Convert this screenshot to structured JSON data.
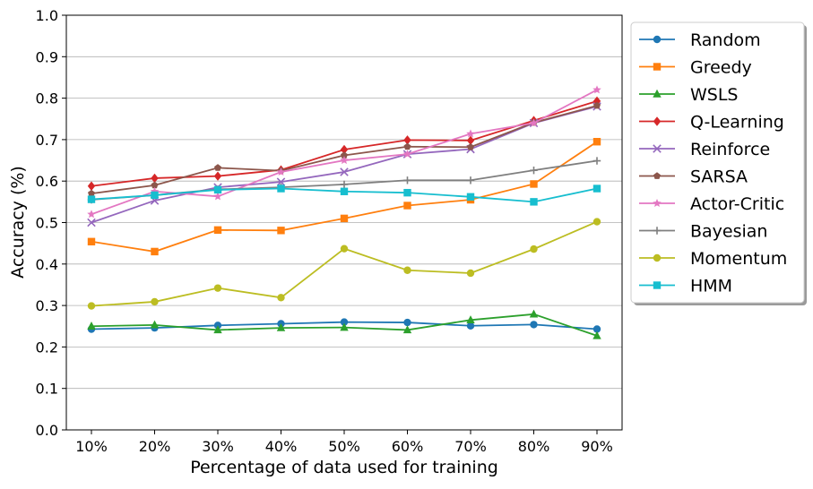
{
  "chart_data": {
    "type": "line",
    "title": "",
    "xlabel": "Percentage of data used for training",
    "ylabel": "Accuracy (%)",
    "categories": [
      "10%",
      "20%",
      "30%",
      "40%",
      "50%",
      "60%",
      "70%",
      "80%",
      "90%"
    ],
    "ylim": [
      0,
      1.0
    ],
    "yticks": [
      "0.0",
      "0.1",
      "0.2",
      "0.3",
      "0.4",
      "0.5",
      "0.6",
      "0.7",
      "0.8",
      "0.9",
      "1.0"
    ],
    "grid": "horizontal",
    "legend_position": "outside-right",
    "series": [
      {
        "name": "Random",
        "color": "#1f77b4",
        "marker": "circle",
        "values": [
          0.243,
          0.246,
          0.252,
          0.256,
          0.26,
          0.259,
          0.251,
          0.254,
          0.243
        ]
      },
      {
        "name": "Greedy",
        "color": "#ff7f0e",
        "marker": "square",
        "values": [
          0.454,
          0.43,
          0.482,
          0.481,
          0.51,
          0.541,
          0.555,
          0.593,
          0.695
        ]
      },
      {
        "name": "WSLS",
        "color": "#2ca02c",
        "marker": "triangle",
        "values": [
          0.25,
          0.253,
          0.241,
          0.246,
          0.247,
          0.241,
          0.265,
          0.279,
          0.227
        ]
      },
      {
        "name": "Q-Learning",
        "color": "#d62728",
        "marker": "diamond",
        "values": [
          0.588,
          0.607,
          0.612,
          0.627,
          0.676,
          0.699,
          0.698,
          0.746,
          0.793
        ]
      },
      {
        "name": "Reinforce",
        "color": "#9467bd",
        "marker": "x",
        "values": [
          0.5,
          0.553,
          0.585,
          0.598,
          0.622,
          0.665,
          0.677,
          0.74,
          0.78
        ]
      },
      {
        "name": "SARSA",
        "color": "#8c564b",
        "marker": "pentagon",
        "values": [
          0.57,
          0.59,
          0.632,
          0.625,
          0.662,
          0.683,
          0.682,
          0.741,
          0.782
        ]
      },
      {
        "name": "Actor-Critic",
        "color": "#e377c2",
        "marker": "star",
        "values": [
          0.52,
          0.575,
          0.563,
          0.622,
          0.65,
          0.665,
          0.714,
          0.74,
          0.82
        ]
      },
      {
        "name": "Bayesian",
        "color": "#7f7f7f",
        "marker": "plus",
        "values": [
          0.555,
          0.566,
          0.58,
          0.585,
          0.592,
          0.602,
          0.602,
          0.626,
          0.649
        ]
      },
      {
        "name": "Momentum",
        "color": "#bcbd22",
        "marker": "circle",
        "values": [
          0.299,
          0.309,
          0.342,
          0.319,
          0.437,
          0.385,
          0.378,
          0.436,
          0.502
        ]
      },
      {
        "name": "HMM",
        "color": "#17becf",
        "marker": "square",
        "values": [
          0.556,
          0.566,
          0.579,
          0.582,
          0.575,
          0.572,
          0.562,
          0.55,
          0.582
        ]
      }
    ]
  }
}
